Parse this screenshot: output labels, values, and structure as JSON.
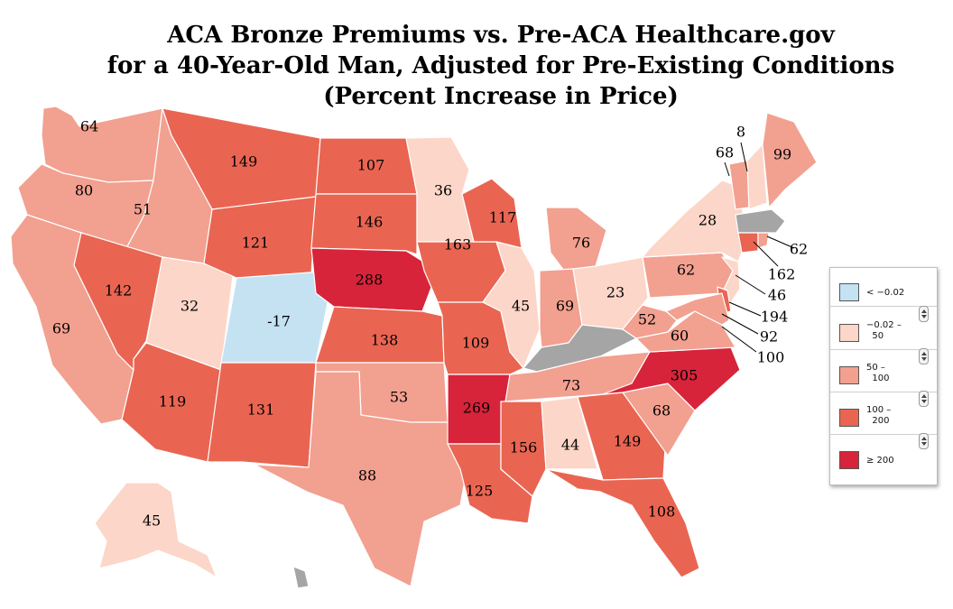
{
  "title": {
    "line1": "ACA Bronze Premiums vs. Pre-ACA Healthcare.gov",
    "line2": "for a 40-Year-Old Man, Adjusted for Pre-Existing Conditions",
    "line3": "(Percent Increase in Price)"
  },
  "colors": {
    "below_neg": "#c5e2f3",
    "low": "#fcd6c8",
    "mid": "#f2a090",
    "high": "#e96552",
    "top": "#d7243a",
    "no_data": "#a5a5a5",
    "border": "#ffffff"
  },
  "legend": {
    "items": [
      {
        "label": "< −0.02",
        "color": "#c5e2f3"
      },
      {
        "label": "−0.02 –\n  50",
        "color": "#fcd6c8"
      },
      {
        "label": "50 –\n  100",
        "color": "#f2a090"
      },
      {
        "label": "100 –\n  200",
        "color": "#e96552"
      },
      {
        "label": "≥ 200",
        "color": "#d7243a"
      }
    ]
  },
  "states": {
    "WA": "64",
    "OR": "80",
    "CA": "69",
    "ID": "51",
    "NV": "142",
    "UT": "32",
    "AZ": "119",
    "MT": "149",
    "WY": "121",
    "CO": "-17",
    "NM": "131",
    "ND": "107",
    "SD": "146",
    "NE": "288",
    "KS": "138",
    "OK": "53",
    "TX": "88",
    "MN": "36",
    "IA": "163",
    "MO": "109",
    "AR": "269",
    "LA": "125",
    "WI": "117",
    "IL": "45",
    "MI": "76",
    "IN": "69",
    "OH": "23",
    "TN": "73",
    "MS": "156",
    "AL": "44",
    "GA": "149",
    "FL": "108",
    "SC": "68",
    "NC": "305",
    "VA": "60",
    "WV": "52",
    "PA": "62",
    "NY": "28",
    "VT": "68",
    "NH": "8",
    "ME": "99",
    "CT": "162",
    "RI": "62",
    "NJ": "46",
    "DE": "194",
    "MD": "92",
    "DC": "100",
    "AK": "45"
  }
}
